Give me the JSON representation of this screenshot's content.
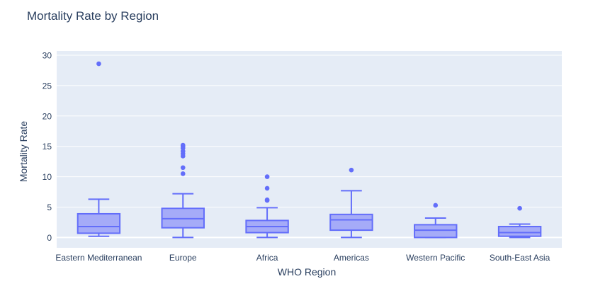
{
  "chart_data": {
    "type": "box",
    "title": "Mortality Rate by Region",
    "xlabel": "WHO Region",
    "ylabel": "Mortality Rate",
    "ylim": [
      -1.7,
      30.7
    ],
    "yticks": [
      0,
      5,
      10,
      15,
      20,
      25,
      30
    ],
    "grid": true,
    "legend": "none",
    "colors": {
      "plot_bg": "#e5ecf6",
      "grid": "#ffffff",
      "box_line": "#636efa",
      "box_fill": "#a5abf8",
      "title": "#2a3f5f",
      "axis_text": "#2a3f5f"
    },
    "categories": [
      "Eastern Mediterranean",
      "Europe",
      "Africa",
      "Americas",
      "Western Pacific",
      "South-East Asia"
    ],
    "boxes": [
      {
        "category": "Eastern Mediterranean",
        "min": 0.2,
        "q1": 0.7,
        "median": 1.8,
        "q3": 3.9,
        "max": 6.3,
        "outliers": [
          28.6
        ]
      },
      {
        "category": "Europe",
        "min": 0.0,
        "q1": 1.6,
        "median": 3.1,
        "q3": 4.8,
        "max": 7.2,
        "outliers": [
          10.5,
          11.5,
          13.4,
          13.8,
          14.2,
          14.7,
          15.0,
          15.2
        ]
      },
      {
        "category": "Africa",
        "min": 0.0,
        "q1": 0.8,
        "median": 1.8,
        "q3": 2.8,
        "max": 4.9,
        "outliers": [
          6.1,
          6.2,
          8.1,
          10.0
        ]
      },
      {
        "category": "Americas",
        "min": 0.0,
        "q1": 1.2,
        "median": 2.9,
        "q3": 3.8,
        "max": 7.7,
        "outliers": [
          11.1
        ]
      },
      {
        "category": "Western Pacific",
        "min": 0.0,
        "q1": 0.0,
        "median": 1.2,
        "q3": 2.1,
        "max": 3.2,
        "outliers": [
          5.3
        ]
      },
      {
        "category": "South-East Asia",
        "min": 0.0,
        "q1": 0.2,
        "median": 0.8,
        "q3": 1.8,
        "max": 2.2,
        "outliers": [
          4.8
        ]
      }
    ]
  }
}
